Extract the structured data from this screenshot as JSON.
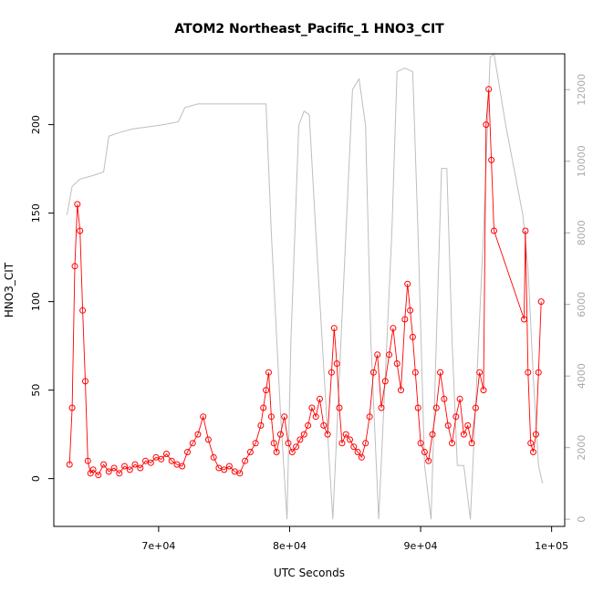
{
  "chart_data": {
    "type": "scatter",
    "title": "ATOM2 Northeast_Pacific_1 HNO3_CIT",
    "xlabel": "UTC Seconds",
    "ylabel": "HNO3_CIT",
    "xlim": [
      62000,
      101000
    ],
    "ylim": [
      -27,
      240
    ],
    "y2lim": [
      -200,
      13000
    ],
    "x_ticks": [
      70000,
      80000,
      90000,
      100000
    ],
    "x_tick_labels": [
      "7e+04",
      "8e+04",
      "9e+04",
      "1e+05"
    ],
    "y_ticks": [
      0,
      50,
      100,
      150,
      200
    ],
    "y_tick_labels": [
      "0",
      "50",
      "100",
      "150",
      "200"
    ],
    "y2_ticks": [
      0,
      2000,
      4000,
      6000,
      8000,
      10000,
      12000
    ],
    "y2_tick_labels": [
      "0",
      "2000",
      "4000",
      "6000",
      "8000",
      "10000",
      "12000"
    ],
    "grid": false,
    "series": [
      {
        "color": "#ff0000",
        "marker": "open-circle",
        "line": true,
        "x": [
          63200,
          63400,
          63600,
          63800,
          64000,
          64200,
          64400,
          64600,
          64800,
          65000,
          65400,
          65800,
          66200,
          66600,
          67000,
          67400,
          67800,
          68200,
          68600,
          69000,
          69400,
          69800,
          70200,
          70600,
          71000,
          71400,
          71800,
          72200,
          72600,
          73000,
          73400,
          73800,
          74200,
          74600,
          75000,
          75400,
          75800,
          76200,
          76600,
          77000,
          77400,
          77800,
          78000,
          78200,
          78400,
          78600,
          78800,
          79000,
          79300,
          79600,
          79900,
          80200,
          80500,
          80800,
          81100,
          81400,
          81700,
          82000,
          82300,
          82600,
          82900,
          83200,
          83400,
          83600,
          83800,
          84000,
          84300,
          84600,
          84900,
          85200,
          85500,
          85800,
          86100,
          86400,
          86700,
          87000,
          87300,
          87600,
          87900,
          88200,
          88500,
          88800,
          89000,
          89200,
          89400,
          89600,
          89800,
          90000,
          90300,
          90600,
          90900,
          91200,
          91500,
          91800,
          92100,
          92400,
          92700,
          93000,
          93300,
          93600,
          93900,
          94200,
          94500,
          94800,
          95000,
          95200,
          95400,
          95600,
          97900,
          98000,
          98200,
          98400,
          98600,
          98800,
          99000,
          99200
        ],
        "y": [
          8,
          40,
          120,
          155,
          140,
          95,
          55,
          10,
          3,
          5,
          2,
          8,
          4,
          6,
          3,
          7,
          5,
          8,
          6,
          10,
          9,
          12,
          11,
          14,
          10,
          8,
          7,
          15,
          20,
          25,
          35,
          22,
          12,
          6,
          5,
          7,
          4,
          3,
          10,
          15,
          20,
          30,
          40,
          50,
          60,
          35,
          20,
          15,
          25,
          35,
          20,
          15,
          18,
          22,
          25,
          30,
          40,
          35,
          45,
          30,
          25,
          60,
          85,
          65,
          40,
          20,
          25,
          22,
          18,
          15,
          12,
          20,
          35,
          60,
          70,
          40,
          55,
          70,
          85,
          65,
          50,
          90,
          110,
          95,
          80,
          60,
          40,
          20,
          15,
          10,
          25,
          40,
          60,
          45,
          30,
          20,
          35,
          45,
          25,
          30,
          20,
          40,
          60,
          50,
          200,
          220,
          180,
          140,
          90,
          140,
          60,
          20,
          15,
          25,
          60,
          100
        ]
      },
      {
        "color": "#bebebe",
        "marker": "none",
        "line": true,
        "axis": "right",
        "x": [
          63000,
          63400,
          64000,
          65000,
          65800,
          66200,
          67000,
          68000,
          69000,
          70000,
          71500,
          72000,
          73000,
          75000,
          77000,
          78200,
          78600,
          79300,
          79800,
          80100,
          80700,
          81100,
          81500,
          82000,
          82800,
          83300,
          83800,
          84300,
          84800,
          85300,
          85800,
          86200,
          86800,
          87300,
          87800,
          88200,
          88800,
          89400,
          89800,
          90300,
          90800,
          91200,
          91600,
          92000,
          92400,
          92800,
          93300,
          93800,
          94300,
          94800,
          95300,
          95600,
          96500,
          97800,
          98200,
          98600,
          99000,
          99300
        ],
        "y": [
          8500,
          9300,
          9500,
          9600,
          9700,
          10700,
          10800,
          10900,
          10950,
          11000,
          11100,
          11500,
          11600,
          11600,
          11600,
          11600,
          8000,
          3000,
          0,
          5000,
          11000,
          11400,
          11300,
          8000,
          3000,
          0,
          4000,
          8000,
          12000,
          12300,
          11000,
          5000,
          0,
          4000,
          8000,
          12500,
          12600,
          12500,
          8000,
          1500,
          0,
          5000,
          9800,
          9800,
          5000,
          1500,
          1500,
          0,
          4000,
          8000,
          12900,
          13000,
          11000,
          8500,
          7000,
          4000,
          1500,
          1000
        ]
      }
    ]
  }
}
